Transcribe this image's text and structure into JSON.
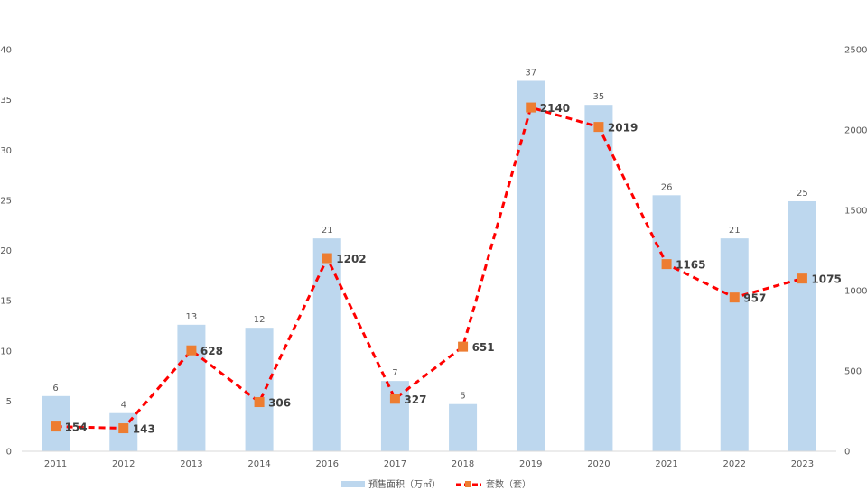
{
  "chart_data": {
    "type": "bar",
    "categories": [
      "2011",
      "2012",
      "2013",
      "2014",
      "2016",
      "2017",
      "2018",
      "2019",
      "2020",
      "2021",
      "2022",
      "2023"
    ],
    "series": [
      {
        "name": "预售面积（万㎡）",
        "type": "bar",
        "axis": "left",
        "values": [
          5.5,
          3.8,
          12.6,
          12.3,
          21.2,
          7.0,
          4.7,
          36.9,
          34.5,
          25.5,
          21.2,
          24.9
        ],
        "labels": [
          "6",
          "4",
          "13",
          "12",
          "21",
          "7",
          "5",
          "37",
          "35",
          "26",
          "21",
          "25"
        ],
        "color": "#bdd7ee"
      },
      {
        "name": "套数（套）",
        "type": "line",
        "axis": "right",
        "values": [
          154,
          143,
          628,
          306,
          1202,
          327,
          651,
          2140,
          2019,
          1165,
          957,
          1075
        ],
        "labels": [
          "154",
          "143",
          "628",
          "306",
          "1202",
          "327",
          "651",
          "2140",
          "2019",
          "1165",
          "957",
          "1075"
        ],
        "color": "#ff0000",
        "marker_color": "#ed7d31",
        "line_style": "dashed"
      }
    ],
    "y_left": {
      "ylim": [
        0,
        40
      ],
      "ticks": [
        "0",
        "5",
        "10",
        "15",
        "20",
        "25",
        "30",
        "35",
        "40"
      ]
    },
    "y_right": {
      "ylim": [
        0,
        2500
      ],
      "ticks": [
        "0",
        "500",
        "1000",
        "1500",
        "2000",
        "2500"
      ]
    },
    "grid": false,
    "legend": "bottom-center"
  }
}
